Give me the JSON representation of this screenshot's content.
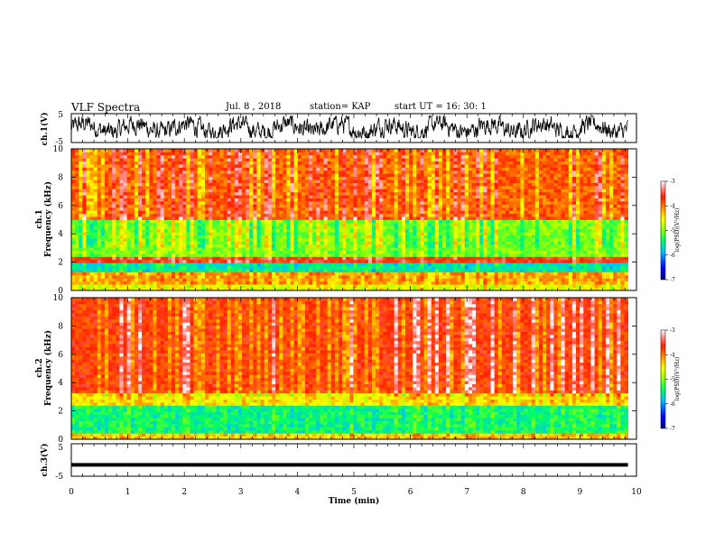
{
  "header": {
    "title": "VLF Spectra",
    "date": "Jul. 8 , 2018",
    "station": "station= KAP",
    "start": "start UT =  16: 30: 1"
  },
  "chart_data": [
    {
      "type": "line",
      "panel": "waveform-ch1",
      "ylabel": "ch.1(V)",
      "ylim": [
        -5,
        5
      ],
      "yticks": [
        -5,
        5
      ],
      "xlim": [
        0,
        10
      ],
      "data_extent_min": [
        0,
        9.85
      ],
      "description_level": "noisy waveform roughly between -3 and 4 V",
      "color": "#000000"
    },
    {
      "type": "heatmap",
      "panel": "spectrogram-ch1",
      "ylabel_line1": "ch.1",
      "ylabel_line2": "Frequency (kHz)",
      "ylim": [
        0,
        10
      ],
      "yticks": [
        0,
        2,
        4,
        6,
        8,
        10
      ],
      "xlim": [
        0,
        10
      ],
      "data_extent_min": [
        0,
        9.85
      ],
      "bands_khz": [
        {
          "from": 0,
          "to": 0.5,
          "level": -4.6
        },
        {
          "from": 0.5,
          "to": 1.2,
          "level": -4.2
        },
        {
          "from": 1.2,
          "to": 2.0,
          "level": -5.6
        },
        {
          "from": 2.0,
          "to": 2.3,
          "level": -3.6
        },
        {
          "from": 2.3,
          "to": 5.0,
          "level": -5.0
        },
        {
          "from": 5.0,
          "to": 5.3,
          "level": -3.7
        },
        {
          "from": 5.3,
          "to": 10.0,
          "level": -3.9
        }
      ],
      "colorbar": {
        "label": "log(PSD)(V²/Hz)",
        "ticks": [
          -3,
          -4,
          -5,
          -6,
          -7
        ],
        "range": [
          -7,
          -3
        ]
      }
    },
    {
      "type": "heatmap",
      "panel": "spectrogram-ch2",
      "ylabel_line1": "ch.2",
      "ylabel_line2": "Frequency (kHz)",
      "ylim": [
        0,
        10
      ],
      "yticks": [
        0,
        2,
        4,
        6,
        8,
        10
      ],
      "xlim": [
        0,
        10
      ],
      "data_extent_min": [
        0,
        9.85
      ],
      "bands_khz": [
        {
          "from": 0,
          "to": 0.5,
          "level": -4.3
        },
        {
          "from": 0.5,
          "to": 2.4,
          "level": -5.4
        },
        {
          "from": 2.4,
          "to": 3.2,
          "level": -4.4
        },
        {
          "from": 3.2,
          "to": 10.0,
          "level": -3.7
        }
      ],
      "colorbar": {
        "label": "log(PSD)(V²/Hz)",
        "ticks": [
          -3,
          -4,
          -5,
          -6,
          -7
        ],
        "range": [
          -7,
          -3
        ]
      }
    },
    {
      "type": "line",
      "panel": "waveform-ch3",
      "ylabel": "ch.3(V)",
      "ylim": [
        -5,
        5
      ],
      "yticks": [
        -5,
        5
      ],
      "xlim": [
        0,
        10
      ],
      "data_extent_min": [
        0,
        9.85
      ],
      "constant_value": -1.5,
      "color": "#000000"
    }
  ],
  "xaxis": {
    "label": "Time (min)",
    "ticks": [
      "0",
      "1",
      "2",
      "3",
      "4",
      "5",
      "6",
      "7",
      "8",
      "9",
      "10"
    ]
  },
  "colors": {
    "scale": [
      "#000080",
      "#0000ff",
      "#00bfff",
      "#00ff80",
      "#80ff00",
      "#ffff00",
      "#ff8000",
      "#ff2000",
      "#ff8080",
      "#ffffff"
    ]
  }
}
